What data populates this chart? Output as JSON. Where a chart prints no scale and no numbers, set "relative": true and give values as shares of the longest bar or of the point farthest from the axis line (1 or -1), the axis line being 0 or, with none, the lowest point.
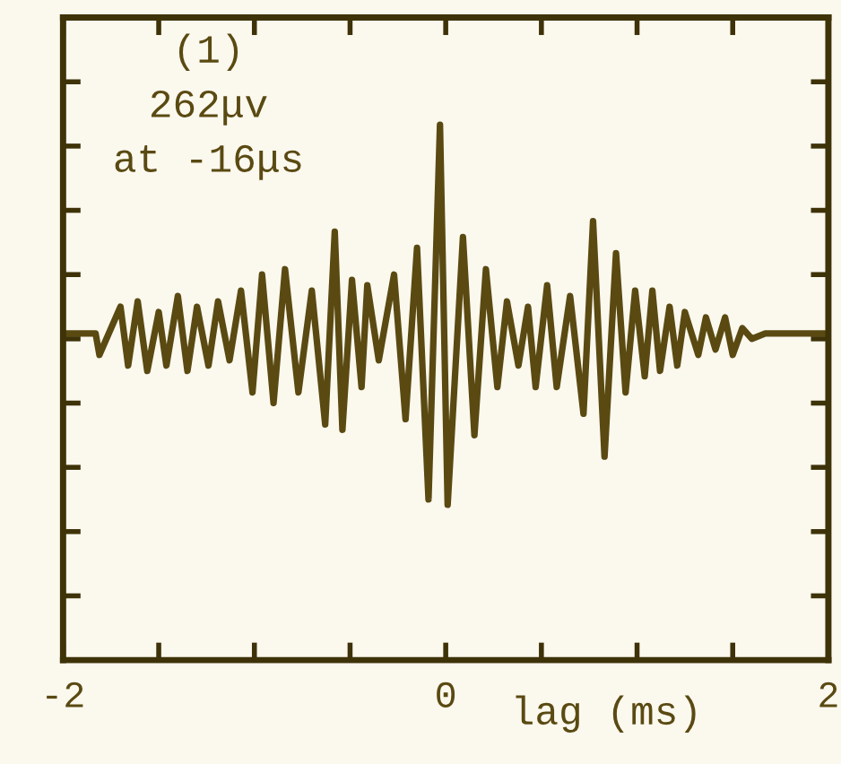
{
  "chart_data": {
    "type": "line",
    "relative": true,
    "xlabel": "lag (ms)",
    "annotations": [
      "(1)",
      "262μv",
      "at -16μs"
    ],
    "xlim": [
      -2,
      2
    ],
    "xticks": [
      -2,
      0,
      2
    ],
    "grid": false,
    "marker": "none",
    "line_style": "solid",
    "series": [
      {
        "color": "#5a4a12",
        "x": [
          -2.0,
          -1.83,
          -1.81,
          -1.7,
          -1.66,
          -1.61,
          -1.56,
          -1.5,
          -1.46,
          -1.4,
          -1.35,
          -1.3,
          -1.24,
          -1.19,
          -1.13,
          -1.07,
          -1.01,
          -0.96,
          -0.9,
          -0.84,
          -0.77,
          -0.7,
          -0.63,
          -0.58,
          -0.54,
          -0.49,
          -0.44,
          -0.41,
          -0.35,
          -0.27,
          -0.21,
          -0.15,
          -0.09,
          -0.03,
          0.01,
          0.09,
          0.15,
          0.21,
          0.27,
          0.32,
          0.38,
          0.43,
          0.47,
          0.53,
          0.58,
          0.65,
          0.72,
          0.77,
          0.83,
          0.89,
          0.94,
          0.99,
          1.04,
          1.08,
          1.12,
          1.17,
          1.21,
          1.25,
          1.32,
          1.36,
          1.41,
          1.46,
          1.5,
          1.55,
          1.6,
          1.67,
          2.0
        ],
        "values": [
          0.61,
          0.61,
          0.57,
          0.66,
          0.55,
          0.67,
          0.54,
          0.65,
          0.55,
          0.68,
          0.54,
          0.66,
          0.55,
          0.67,
          0.56,
          0.69,
          0.5,
          0.72,
          0.48,
          0.73,
          0.5,
          0.69,
          0.44,
          0.8,
          0.43,
          0.71,
          0.51,
          0.7,
          0.56,
          0.72,
          0.45,
          0.77,
          0.3,
          1.0,
          0.29,
          0.79,
          0.42,
          0.73,
          0.51,
          0.67,
          0.55,
          0.66,
          0.51,
          0.7,
          0.51,
          0.68,
          0.46,
          0.82,
          0.38,
          0.76,
          0.5,
          0.69,
          0.53,
          0.69,
          0.54,
          0.66,
          0.55,
          0.65,
          0.57,
          0.64,
          0.58,
          0.64,
          0.57,
          0.62,
          0.6,
          0.61,
          0.61
        ]
      }
    ]
  }
}
